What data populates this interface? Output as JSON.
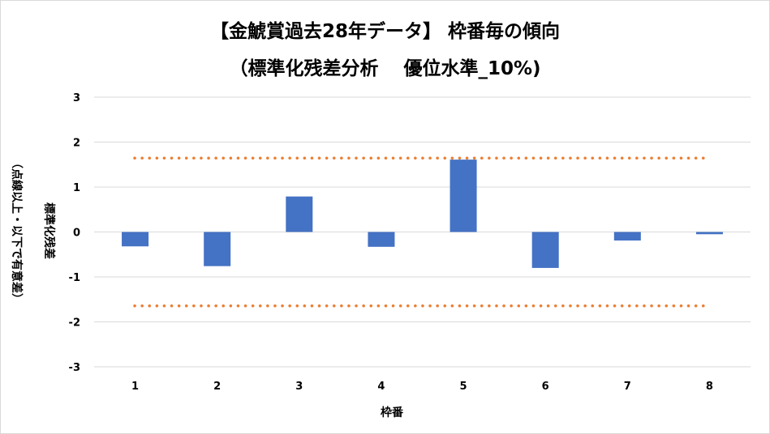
{
  "chart_data": {
    "type": "bar",
    "title": "【金鯱賞過去28年データ】 枠番毎の傾向",
    "subtitle": "（標準化残差分析　 優位水準_10%)",
    "xlabel": "枠番",
    "ylabel_main": "標準化残差",
    "ylabel_sub": "（点線以上・以下で有意差）",
    "categories": [
      "1",
      "2",
      "3",
      "4",
      "5",
      "6",
      "7",
      "8"
    ],
    "values": [
      -0.32,
      -0.76,
      0.79,
      -0.33,
      1.61,
      -0.8,
      -0.19,
      -0.05
    ],
    "ylim": [
      -3,
      3
    ],
    "yticks": [
      "3",
      "2",
      "1",
      "0",
      "-1",
      "-2",
      "-3"
    ],
    "ytick_values": [
      3,
      2,
      1,
      0,
      -1,
      -2,
      -3
    ],
    "thresholds": [
      1.645,
      -1.645
    ],
    "grid": true,
    "legend": "none",
    "colors": {
      "bar": "#4472c4",
      "threshold": "#ed7d31",
      "grid": "#d9d9d9"
    }
  }
}
